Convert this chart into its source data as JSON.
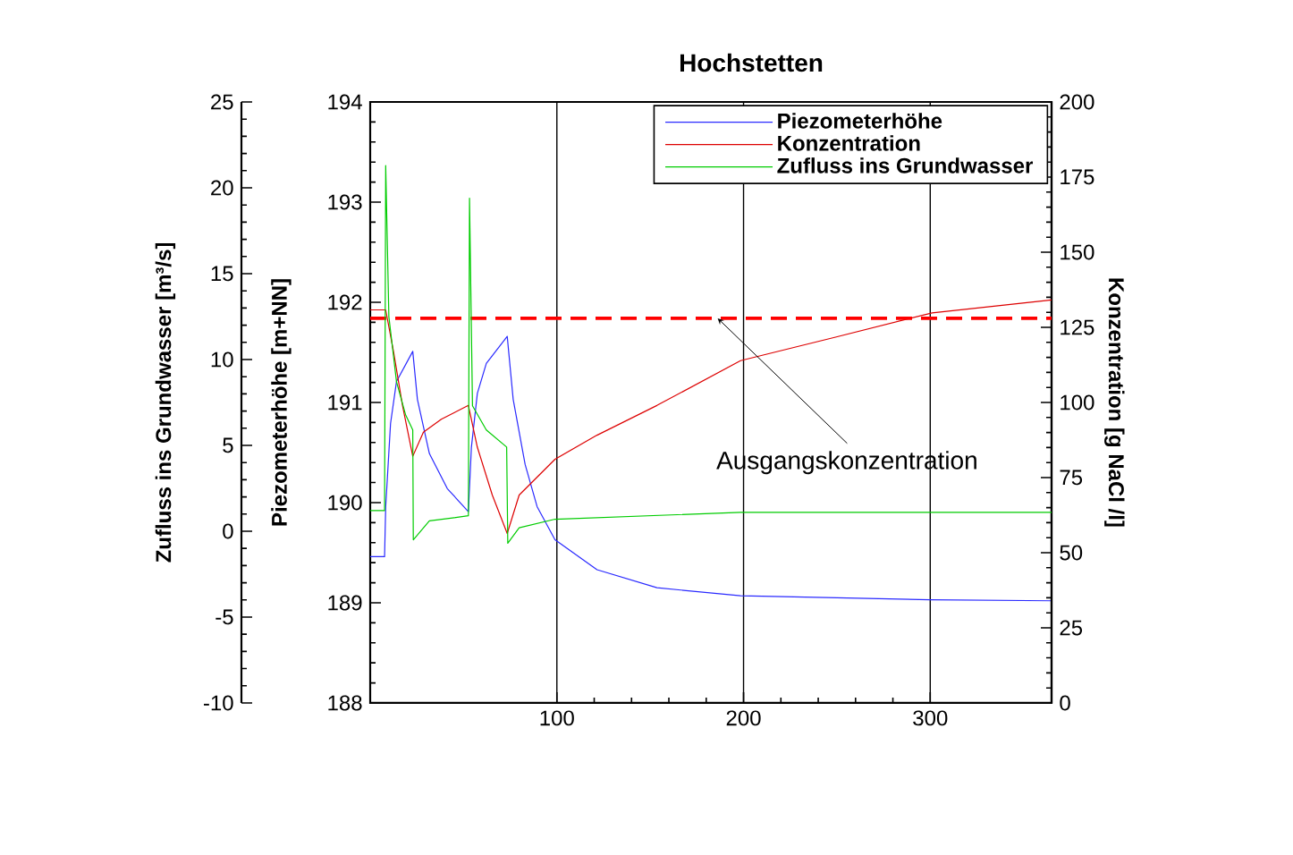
{
  "chart_data": {
    "type": "line",
    "title": "Hochstetten",
    "ylabel": "Piezometerhöhe [m+NN]",
    "y2label": "Konzentration [g NaCl /l]",
    "y3label": "Zufluss ins Grundwasser [m³/s]",
    "xlim": [
      0,
      365
    ],
    "xticks": [
      100,
      200,
      300
    ],
    "ylim": [
      188,
      194
    ],
    "yticks": [
      188,
      189,
      190,
      191,
      192,
      193,
      194
    ],
    "y2lim": [
      0,
      200
    ],
    "y2ticks": [
      0,
      25,
      50,
      75,
      100,
      125,
      150,
      175,
      200
    ],
    "y3lim": [
      -10,
      25
    ],
    "y3ticks": [
      -10,
      -5,
      0,
      5,
      10,
      15,
      20,
      25
    ],
    "grid": "x",
    "legend": "top right",
    "marker": "none",
    "line_style": "solid",
    "ref_lines": [
      {
        "axis": "y2",
        "value": 128,
        "label": "Ausgangskonzentration",
        "color": "#ff0000",
        "line_style": "dashed"
      }
    ],
    "series": [
      {
        "name": "Piezometerhöhe",
        "color": "#2a2aff",
        "axis": "y",
        "x": [
          0,
          7.7,
          8.3,
          10.9,
          14.1,
          22.8,
          25.3,
          31.7,
          41.3,
          52.6,
          54.2,
          57.4,
          62.2,
          73.4,
          76.6,
          83,
          89.4,
          99,
          121.5,
          153.6,
          198.4,
          250,
          300,
          365
        ],
        "values": [
          189.46,
          189.46,
          189.96,
          190.79,
          191.21,
          191.51,
          191.03,
          190.49,
          190.14,
          189.91,
          190.55,
          191.09,
          191.39,
          191.66,
          191.03,
          190.38,
          189.96,
          189.63,
          189.33,
          189.15,
          189.07,
          189.05,
          189.03,
          189.02
        ]
      },
      {
        "name": "Konzentration",
        "color": "#dd0000",
        "axis": "y2",
        "x": [
          0,
          8.3,
          12.5,
          17.3,
          22.8,
          28.5,
          38.1,
          52.6,
          57.4,
          65.4,
          73.4,
          79.8,
          99,
          121.5,
          153.6,
          198.4,
          249.7,
          301,
          365
        ],
        "values": [
          130.8,
          130.8,
          116.9,
          99,
          82.1,
          90.1,
          94.4,
          99,
          85.1,
          69.2,
          56.4,
          69.2,
          81.1,
          89.1,
          99,
          113.9,
          121.8,
          129.8,
          134.1
        ]
      },
      {
        "name": "Zufluss ins Grundwasser",
        "color": "#00cc00",
        "axis": "y3",
        "x": [
          0,
          7.7,
          8.3,
          10,
          14.1,
          18.9,
          22.8,
          23.1,
          31.7,
          52.6,
          53.2,
          54.8,
          62.2,
          73.1,
          73.7,
          79.8,
          99,
          198.4,
          365
        ],
        "values": [
          1.2,
          1.2,
          21.3,
          12.5,
          8.7,
          6.8,
          5.9,
          -0.5,
          0.6,
          0.9,
          19.4,
          7.3,
          5.9,
          4.9,
          -0.7,
          0.2,
          0.7,
          1.1,
          1.1
        ]
      }
    ]
  }
}
